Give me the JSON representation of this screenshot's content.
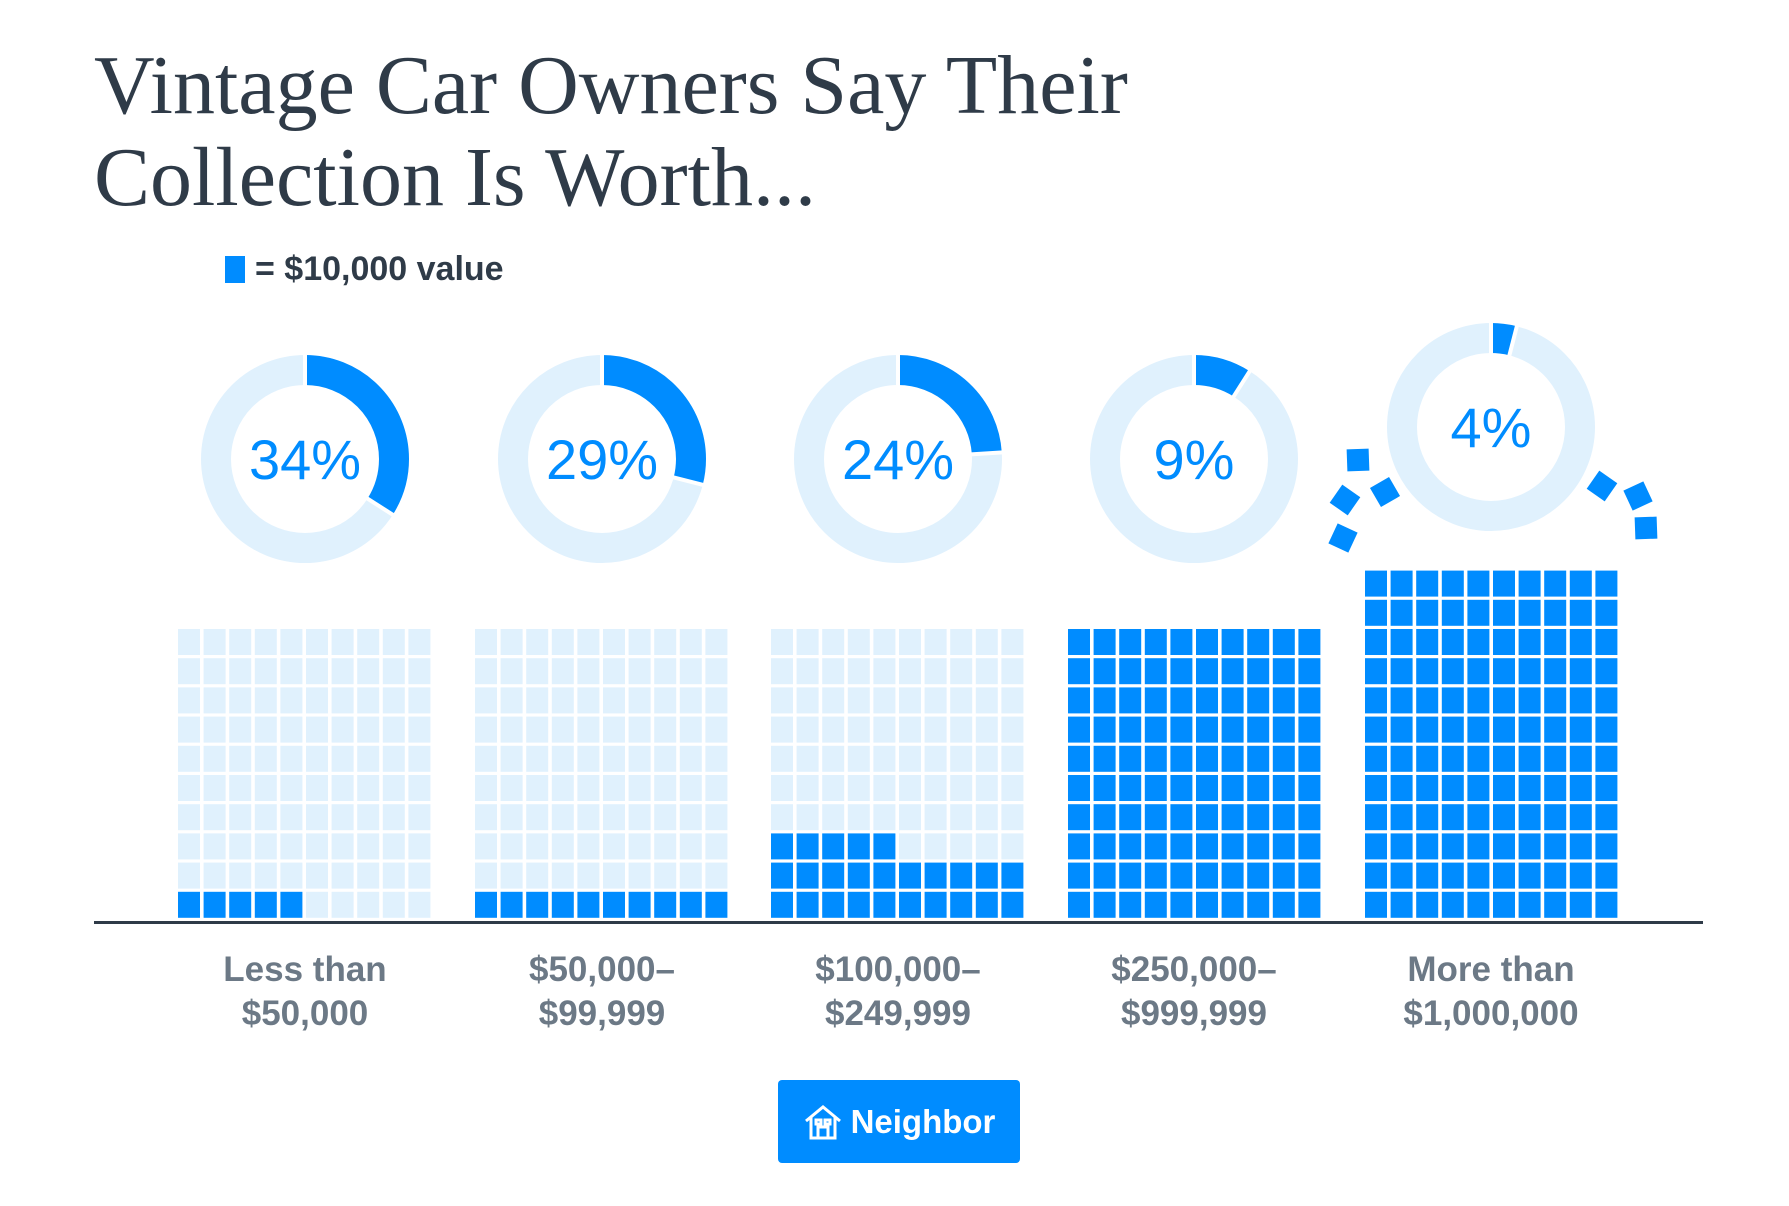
{
  "chart_data": {
    "type": "waffle",
    "title_lines": [
      "Vintage Car Owners Say Their",
      "Collection Is Worth..."
    ],
    "legend": "= $10,000 value",
    "unit_value": 10000,
    "categories": [
      {
        "lines": [
          "Less than",
          "$50,000"
        ],
        "percent": 34,
        "percent_label": "34%",
        "squares_filled": 5,
        "rows": 10,
        "cols": 10
      },
      {
        "lines": [
          "$50,000–",
          "$99,999"
        ],
        "percent": 29,
        "percent_label": "29%",
        "squares_filled": 10,
        "rows": 10,
        "cols": 10
      },
      {
        "lines": [
          "$100,000–",
          "$249,999"
        ],
        "percent": 24,
        "percent_label": "24%",
        "squares_filled": 25,
        "rows": 10,
        "cols": 10
      },
      {
        "lines": [
          "$250,000–",
          "$999,999"
        ],
        "percent": 9,
        "percent_label": "9%",
        "squares_filled": 100,
        "rows": 10,
        "cols": 10
      },
      {
        "lines": [
          "More than",
          "$1,000,000"
        ],
        "percent": 4,
        "percent_label": "4%",
        "squares_filled": 120,
        "rows": 12,
        "cols": 10
      }
    ],
    "colors": {
      "filled": "#008cff",
      "empty": "#e0f1fd",
      "axis": "#2f3b48",
      "text": "#2f3b48",
      "label": "#6c7986"
    }
  },
  "brand": {
    "name": "Neighbor",
    "icon": "house-icon"
  }
}
